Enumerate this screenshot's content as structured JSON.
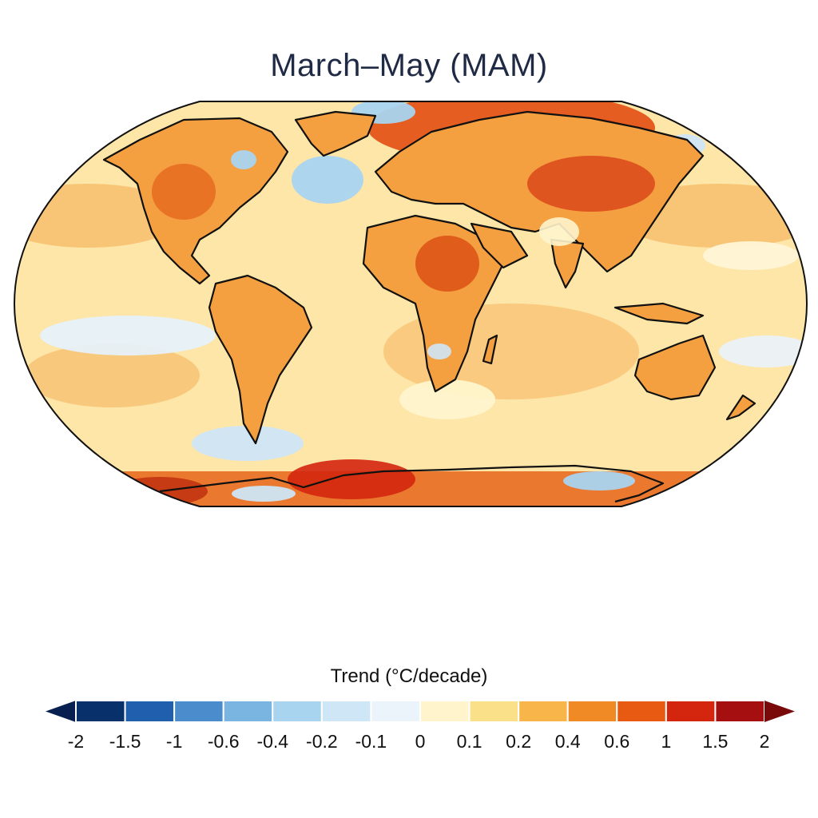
{
  "title": "March–May (MAM)",
  "colorbar": {
    "label": "Trend (°C/decade)",
    "ticks": [
      "-2",
      "-1.5",
      "-1",
      "-0.6",
      "-0.4",
      "-0.2",
      "-0.1",
      "0",
      "0.1",
      "0.2",
      "0.4",
      "0.6",
      "1",
      "1.5",
      "2"
    ],
    "colors": [
      "#08306b",
      "#1f5fae",
      "#4a8ccc",
      "#7ab4e0",
      "#a9d4f0",
      "#cfe6f6",
      "#ebf4fb",
      "#fff4cc",
      "#fbe08a",
      "#f8b54a",
      "#f08a24",
      "#e85a12",
      "#d4260e",
      "#a50f0f"
    ],
    "under_color": "#08204f",
    "over_color": "#7a0a0a"
  },
  "map": {
    "projection": "equal-earth",
    "ocean_base_color": "#fde6a8",
    "outline_color": "#111111"
  }
}
